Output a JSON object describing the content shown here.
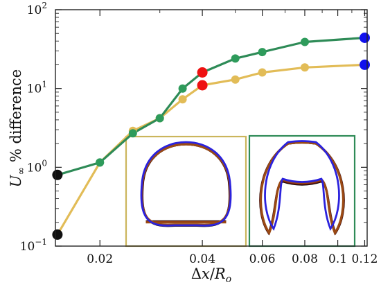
{
  "chart_data": {
    "type": "line",
    "xlabel": "Δx/R_o",
    "ylabel": "U_∞ % difference",
    "xscale": "log",
    "yscale": "log",
    "xlim": [
      0.0148,
      0.122
    ],
    "ylim": [
      0.1,
      100
    ],
    "xticks": [
      {
        "value": 0.02,
        "label": "0.02"
      },
      {
        "value": 0.04,
        "label": "0.04"
      },
      {
        "value": 0.06,
        "label": "0.06"
      },
      {
        "value": 0.08,
        "label": "0.08"
      },
      {
        "value": 0.1,
        "label": "0.1"
      },
      {
        "value": 0.12,
        "label": "0.12"
      }
    ],
    "yticks": [
      {
        "value": 0.1,
        "base": "10",
        "exp": "−1"
      },
      {
        "value": 1,
        "base": "10",
        "exp": "0"
      },
      {
        "value": 10,
        "base": "10",
        "exp": "1"
      },
      {
        "value": 100,
        "base": "10",
        "exp": "2"
      }
    ],
    "grid": false,
    "series": [
      {
        "color": "#e2bc57",
        "x": [
          0.015,
          0.02,
          0.025,
          0.03,
          0.035,
          0.04,
          0.05,
          0.06,
          0.08,
          0.12
        ],
        "y": [
          0.14,
          1.15,
          2.9,
          4.2,
          7.3,
          11,
          13,
          16,
          18.5,
          20
        ],
        "marker_colors": [
          "#111111",
          "#2e9b5b",
          "#e2bc57",
          "#e2bc57",
          "#e2bc57",
          "#ee1111",
          "#e2bc57",
          "#e2bc57",
          "#e2bc57",
          "#1111ee"
        ]
      },
      {
        "color": "#2e8b57",
        "x": [
          0.015,
          0.02,
          0.025,
          0.03,
          0.035,
          0.04,
          0.05,
          0.06,
          0.08,
          0.12
        ],
        "y": [
          0.8,
          1.15,
          2.7,
          4.2,
          10,
          16,
          24,
          29,
          39,
          44
        ],
        "marker_colors": [
          "#111111",
          "#2e9b5b",
          "#2e9b5b",
          "#2e9b5b",
          "#2e9b5b",
          "#ee1111",
          "#2e9b5b",
          "#2e9b5b",
          "#2e9b5b",
          "#1111ee"
        ]
      }
    ],
    "insets": [
      {
        "frame_color": "#cbb55c",
        "shape": "cup",
        "outline_colors": [
          "#1a0a0a",
          "#7a1a10",
          "#9a4a14",
          "#2b22dd"
        ]
      },
      {
        "frame_color": "#2e8b57",
        "shape": "arch",
        "outline_colors": [
          "#1a0a0a",
          "#7a1a10",
          "#9a4a14",
          "#2b22dd"
        ]
      }
    ]
  }
}
